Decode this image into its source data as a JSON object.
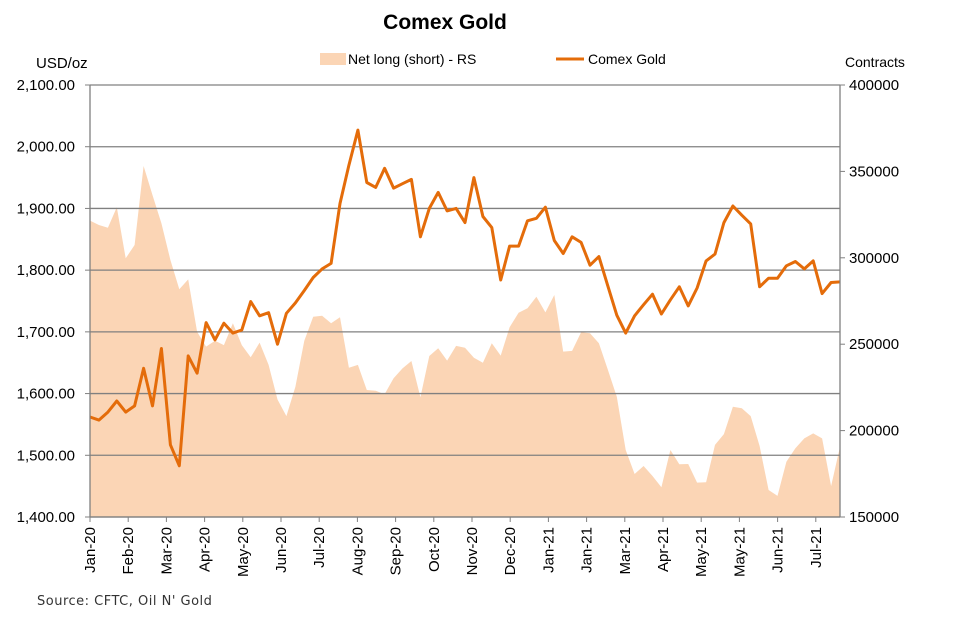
{
  "chart_data": {
    "type": "area+line",
    "title": "Comex Gold",
    "ylabel_left": "USD/oz",
    "ylabel_right": "Contracts",
    "source": "Source: CFTC, Oil N' Gold",
    "ylim_left": [
      1400,
      2100
    ],
    "ylim_right": [
      150000,
      400000
    ],
    "yticks_left": [
      "1,400.00",
      "1,500.00",
      "1,600.00",
      "1,700.00",
      "1,800.00",
      "1,900.00",
      "2,000.00",
      "2,100.00"
    ],
    "yticks_right": [
      "150000",
      "200000",
      "250000",
      "300000",
      "350000",
      "400000"
    ],
    "xtick_labels": [
      "Jan-20",
      "Feb-20",
      "Mar-20",
      "Apr-20",
      "May-20",
      "Jun-20",
      "Jul-20",
      "Aug-20",
      "Sep-20",
      "Oct-20",
      "Nov-20",
      "Dec-20",
      "Jan-21",
      "Jan-21",
      "Mar-21",
      "Apr-21",
      "May-21",
      "May-21",
      "Jun-21",
      "Jul-21"
    ],
    "grid": true,
    "legend_position": "top-center",
    "series": [
      {
        "name": "Net long (short) - RS",
        "type": "area",
        "axis": "right",
        "color": "#FBD5B5",
        "values": [
          321500,
          319000,
          317400,
          329200,
          299700,
          307400,
          353100,
          336300,
          320000,
          298700,
          281800,
          287500,
          257200,
          248600,
          252000,
          249500,
          262100,
          249500,
          242400,
          250900,
          238000,
          218000,
          208400,
          225400,
          252000,
          265900,
          266500,
          262100,
          265600,
          236400,
          238000,
          223500,
          223100,
          221000,
          230300,
          236000,
          240300,
          219300,
          243200,
          247600,
          240500,
          249000,
          248000,
          242200,
          239300,
          250500,
          243400,
          259800,
          268200,
          270800,
          277500,
          268400,
          278500,
          245700,
          246100,
          256900,
          256300,
          250500,
          235100,
          219600,
          188800,
          174900,
          179500,
          173700,
          167200,
          188800,
          180500,
          180700,
          169900,
          170100,
          191700,
          198000,
          213800,
          212900,
          208400,
          191100,
          165600,
          162200,
          182000,
          189800,
          195500,
          198400,
          195500,
          167900,
          190700
        ]
      },
      {
        "name": "Comex Gold",
        "type": "line",
        "axis": "left",
        "color": "#E46C0A",
        "values": [
          1562,
          1557,
          1570,
          1588,
          1570,
          1580,
          1641,
          1580,
          1673,
          1517,
          1483,
          1661,
          1633,
          1715,
          1687,
          1714,
          1698,
          1703,
          1749,
          1726,
          1731,
          1680,
          1730,
          1747,
          1767,
          1788,
          1802,
          1811,
          1908,
          1970,
          2027,
          1942,
          1934,
          1965,
          1933,
          1940,
          1947,
          1854,
          1900,
          1926,
          1896,
          1900,
          1877,
          1950,
          1887,
          1869,
          1784,
          1839,
          1839,
          1880,
          1884,
          1902,
          1848,
          1827,
          1854,
          1845,
          1808,
          1822,
          1774,
          1727,
          1698,
          1726,
          1744,
          1761,
          1729,
          1752,
          1773,
          1742,
          1771,
          1815,
          1826,
          1877,
          1904,
          1889,
          1875,
          1773,
          1787,
          1787,
          1807,
          1814,
          1802,
          1815,
          1762,
          1780,
          1781
        ]
      }
    ]
  }
}
